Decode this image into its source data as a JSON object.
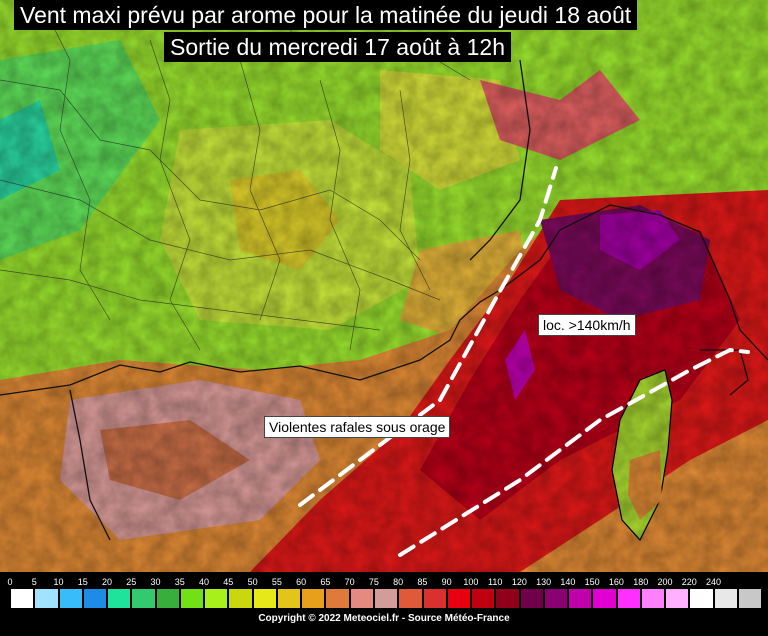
{
  "title": {
    "line1": "Vent maxi prévu par arome pour la matinée du jeudi 18 août",
    "line2": "Sortie du mercredi 17 août à 12h"
  },
  "annotations": {
    "gusts": "Violentes rafales sous orage",
    "local_max": "loc. >140km/h"
  },
  "legend": {
    "ticks": [
      "0",
      "5",
      "10",
      "15",
      "20",
      "25",
      "30",
      "35",
      "40",
      "45",
      "50",
      "55",
      "60",
      "65",
      "70",
      "75",
      "80",
      "85",
      "90",
      "100",
      "110",
      "120",
      "130",
      "140",
      "150",
      "160",
      "180",
      "200",
      "220",
      "240"
    ],
    "colors": [
      "#ffffff",
      "#9fe3ff",
      "#38bdf8",
      "#1e8be6",
      "#1fe39b",
      "#33c96e",
      "#38ae3c",
      "#72e015",
      "#a8f01c",
      "#c9d80d",
      "#e6e81a",
      "#e3c419",
      "#e8a01c",
      "#e07a3a",
      "#e58a80",
      "#d49b9b",
      "#e05a3a",
      "#d93030",
      "#e80010",
      "#c00010",
      "#900018",
      "#70004a",
      "#8a0070",
      "#c000a8",
      "#e000d0",
      "#ff30ff",
      "#ff80ff",
      "#ffb0ff",
      "#ffffff",
      "#e8e8e8",
      "#c8c8c8"
    ],
    "copyright": "Copyright © 2022 Meteociel.fr - Source Météo-France"
  }
}
